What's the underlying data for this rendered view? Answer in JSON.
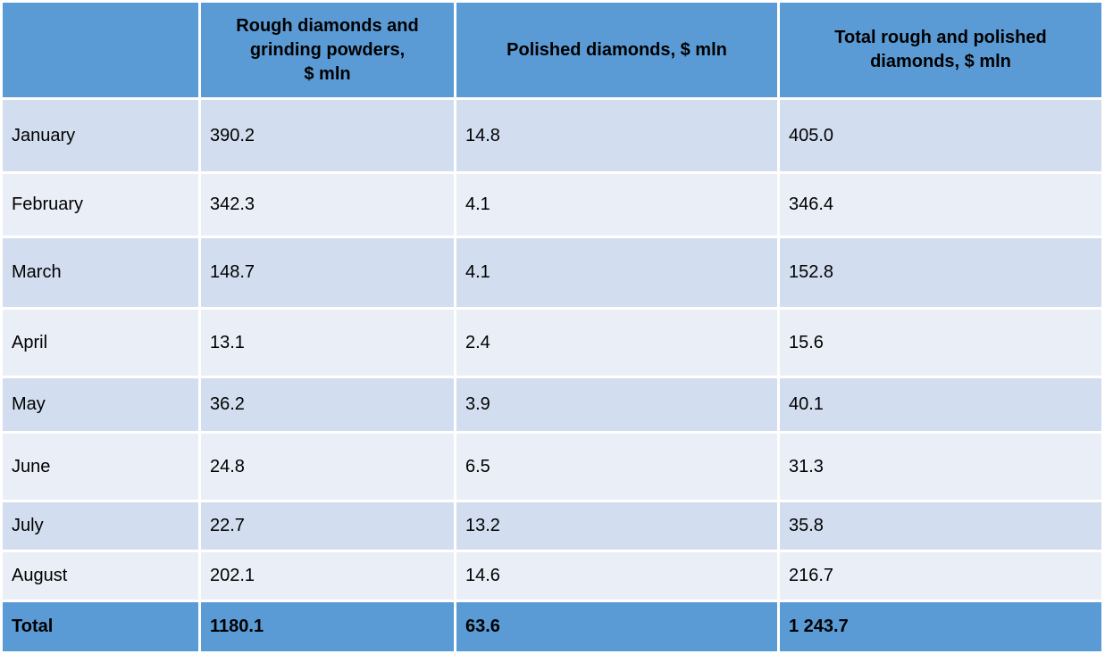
{
  "headers": {
    "blank": "",
    "rough": [
      "Rough diamonds and",
      "grinding powders,",
      "$ mln"
    ],
    "polished": "Polished diamonds, $ mln",
    "total": [
      "Total rough and polished",
      "diamonds, $ mln"
    ]
  },
  "rows": [
    {
      "month": "January",
      "rough": "390.2",
      "polished": "14.8",
      "total": "405.0"
    },
    {
      "month": "February",
      "rough": "342.3",
      "polished": "4.1",
      "total": "346.4"
    },
    {
      "month": "March",
      "rough": "148.7",
      "polished": "4.1",
      "total": "152.8"
    },
    {
      "month": "April",
      "rough": "13.1",
      "polished": "2.4",
      "total": "15.6"
    },
    {
      "month": "May",
      "rough": "36.2",
      "polished": "3.9",
      "total": "40.1"
    },
    {
      "month": "June",
      "rough": "24.8",
      "polished": "6.5",
      "total": "31.3"
    },
    {
      "month": "July",
      "rough": "22.7",
      "polished": "13.2",
      "total": "35.8"
    },
    {
      "month": "August",
      "rough": "202.1",
      "polished": "14.6",
      "total": "216.7"
    }
  ],
  "footer": {
    "label": "Total",
    "rough": "1180.1",
    "polished": "63.6",
    "total": "1 243.7"
  },
  "colors": {
    "header_blue": "#5b9bd5",
    "band_dark": "#d2deef",
    "band_light": "#eaeff7"
  }
}
